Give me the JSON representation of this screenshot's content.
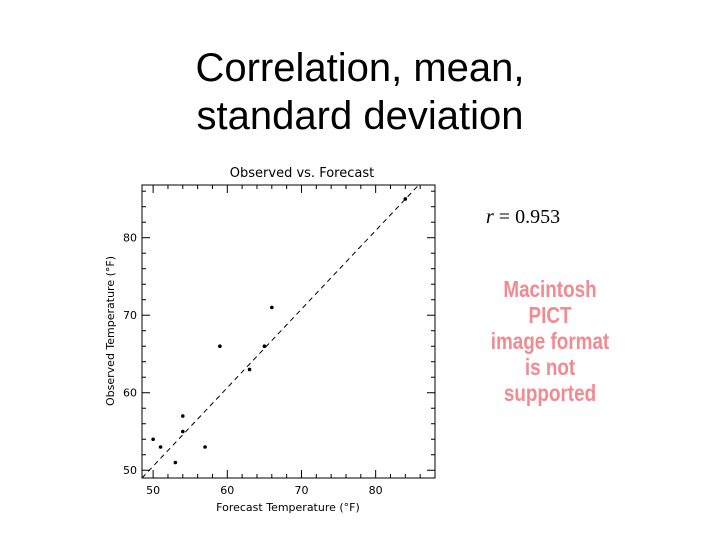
{
  "slide": {
    "title_line1": "Correlation, mean,",
    "title_line2": "standard deviation"
  },
  "stat": {
    "r_symbol": "r",
    "r_rest": " = 0.953"
  },
  "placeholder_image": {
    "line1": "Macintosh PICT",
    "line2": "image format",
    "line3": "is not supported"
  },
  "chart_data": {
    "type": "scatter",
    "title": "Observed vs. Forecast",
    "xlabel": "Forecast Temperature (°F)",
    "ylabel": "Observed Temperature (°F)",
    "xlim": [
      48.5,
      88
    ],
    "ylim": [
      49,
      86.8
    ],
    "xticks": [
      50,
      60,
      70,
      80
    ],
    "yticks": [
      50,
      60,
      70,
      80
    ],
    "points": [
      {
        "x": 50,
        "y": 54
      },
      {
        "x": 51,
        "y": 53
      },
      {
        "x": 53,
        "y": 51
      },
      {
        "x": 54,
        "y": 57
      },
      {
        "x": 54,
        "y": 55
      },
      {
        "x": 57,
        "y": 53
      },
      {
        "x": 59,
        "y": 66
      },
      {
        "x": 63,
        "y": 63
      },
      {
        "x": 65,
        "y": 66
      },
      {
        "x": 66,
        "y": 71
      },
      {
        "x": 84,
        "y": 85
      }
    ],
    "reference_line": {
      "style": "dashed",
      "from": [
        48.5,
        49
      ],
      "to": [
        86,
        87
      ]
    },
    "grid": false,
    "colors": {
      "points": "#000000",
      "line": "#000000"
    }
  }
}
